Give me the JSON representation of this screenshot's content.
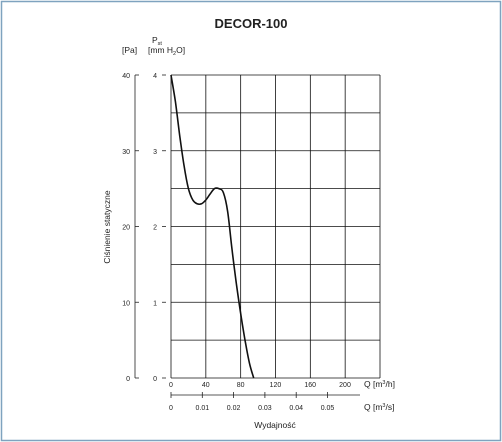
{
  "chart_data": {
    "type": "line",
    "title": "DECOR-100",
    "ylabel": "Ciśnienie statyczne",
    "xlabel": "Wydajność",
    "y_pa_unit": "[Pa]",
    "y_mm_symbol": "P",
    "y_mm_symbol_sub": "st",
    "y_mm_unit_prefix": "[mm H",
    "y_mm_unit_sub": "2",
    "y_mm_unit_suffix": "O]",
    "x_m3h_label_prefix": "Q [m",
    "x_m3h_label_sup": "3",
    "x_m3h_label_suffix": "/h]",
    "x_m3s_label_prefix": "Q [m",
    "x_m3s_label_sup": "3",
    "x_m3s_label_suffix": "/s]",
    "y_pa_ticks": [
      "0",
      "10",
      "20",
      "30",
      "40"
    ],
    "y_mm_ticks": [
      "0",
      "1",
      "2",
      "3",
      "4"
    ],
    "x_m3h_ticks": [
      "0",
      "40",
      "80",
      "120",
      "160",
      "200"
    ],
    "x_m3s_ticks": [
      "0",
      "0.01",
      "0.02",
      "0.03",
      "0.04",
      "0.05"
    ],
    "xlim": [
      0,
      240
    ],
    "ylim": [
      0,
      40
    ],
    "grid": true,
    "series": [
      {
        "x": [
          0,
          5,
          10,
          15,
          20,
          25,
          30,
          35,
          40,
          45,
          50,
          55,
          60,
          65,
          70,
          75,
          80,
          85,
          90,
          95
        ],
        "y": [
          40,
          36.5,
          32,
          28,
          25,
          23.5,
          23,
          23,
          23.5,
          24.3,
          25,
          25,
          24.5,
          22,
          17,
          12.5,
          8.5,
          5,
          2,
          0
        ]
      }
    ]
  }
}
